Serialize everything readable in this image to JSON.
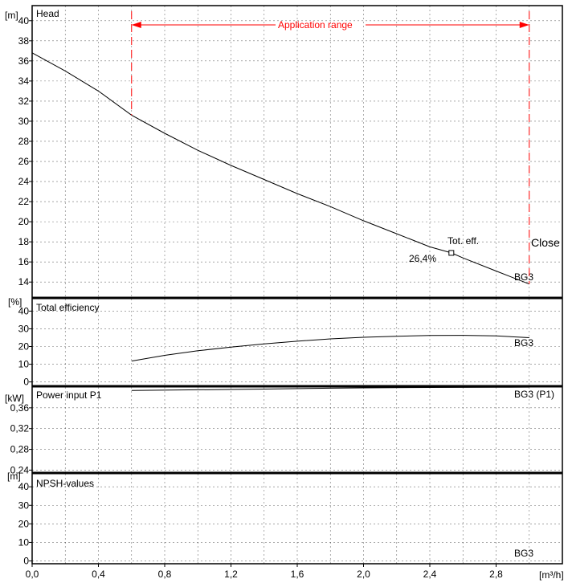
{
  "chart_data": [
    {
      "type": "line",
      "panel": "head",
      "title": "Head",
      "unit_label": "[m]",
      "yticks": [
        14,
        16,
        18,
        20,
        22,
        24,
        26,
        28,
        30,
        32,
        34,
        36,
        38,
        40
      ],
      "ylim": [
        12.5,
        41.5
      ],
      "series": [
        {
          "name": "BG3",
          "x": [
            0.0,
            0.2,
            0.4,
            0.6,
            0.8,
            1.0,
            1.2,
            1.4,
            1.6,
            1.8,
            2.0,
            2.2,
            2.4,
            2.53,
            2.6,
            2.8,
            3.0
          ],
          "y": [
            36.8,
            35.0,
            33.0,
            30.6,
            28.8,
            27.1,
            25.6,
            24.2,
            22.8,
            21.5,
            20.1,
            18.8,
            17.5,
            16.9,
            16.4,
            15.1,
            13.8
          ]
        }
      ],
      "annotations": {
        "duty_point": {
          "x": 2.53,
          "y": 16.9,
          "label": "Tot. eff.",
          "value_label": "26,4%"
        },
        "application_range": {
          "label": "Application range",
          "x_from": 0.6,
          "x_to": 3.0
        },
        "side_label": "Close"
      }
    },
    {
      "type": "line",
      "panel": "efficiency",
      "title": "Total efficiency",
      "unit_label": "[%]",
      "yticks": [
        0,
        10,
        20,
        30,
        40
      ],
      "ylim": [
        -2,
        47
      ],
      "series": [
        {
          "name": "BG3",
          "x": [
            0.6,
            0.8,
            1.0,
            1.2,
            1.4,
            1.6,
            1.8,
            2.0,
            2.2,
            2.4,
            2.6,
            2.8,
            3.0
          ],
          "y": [
            11.8,
            15.0,
            17.6,
            19.7,
            21.5,
            23.0,
            24.3,
            25.2,
            25.8,
            26.2,
            26.3,
            26.0,
            25.0
          ]
        }
      ]
    },
    {
      "type": "line",
      "panel": "power",
      "title": "Power input P1",
      "unit_label": "[kW]",
      "yticks": [
        0.24,
        0.28,
        0.32,
        0.36
      ],
      "ytick_labels": [
        "0,24",
        "0,28",
        "0,32",
        "0,36"
      ],
      "ylim": [
        0.236,
        0.4
      ],
      "series": [
        {
          "name": "BG3 (P1)",
          "x": [
            0.6,
            1.0,
            1.4,
            1.8,
            2.0,
            2.4,
            2.8,
            3.0
          ],
          "y": [
            0.3935,
            0.3948,
            0.3962,
            0.3978,
            0.3985,
            0.3992,
            0.3996,
            0.3998
          ]
        }
      ]
    },
    {
      "type": "line",
      "panel": "npsh",
      "title": "NPSH-values",
      "unit_label": "[m]",
      "yticks": [
        0,
        10,
        20,
        30,
        40
      ],
      "ylim": [
        -1.5,
        47
      ],
      "series": [
        {
          "name": "BG3",
          "x": [],
          "y": []
        }
      ]
    }
  ],
  "x_axis": {
    "ticks": [
      0.0,
      0.4,
      0.8,
      1.2,
      1.6,
      2.0,
      2.4,
      2.8
    ],
    "tick_labels": [
      "0,0",
      "0,4",
      "0,8",
      "1,2",
      "1,6",
      "2,0",
      "2,4",
      "2,8"
    ],
    "xlim": [
      0.0,
      3.2
    ],
    "unit_label": "[m³/h]"
  },
  "colors": {
    "curve": "#000000",
    "range": "#ff0000",
    "grid": "#000000"
  }
}
